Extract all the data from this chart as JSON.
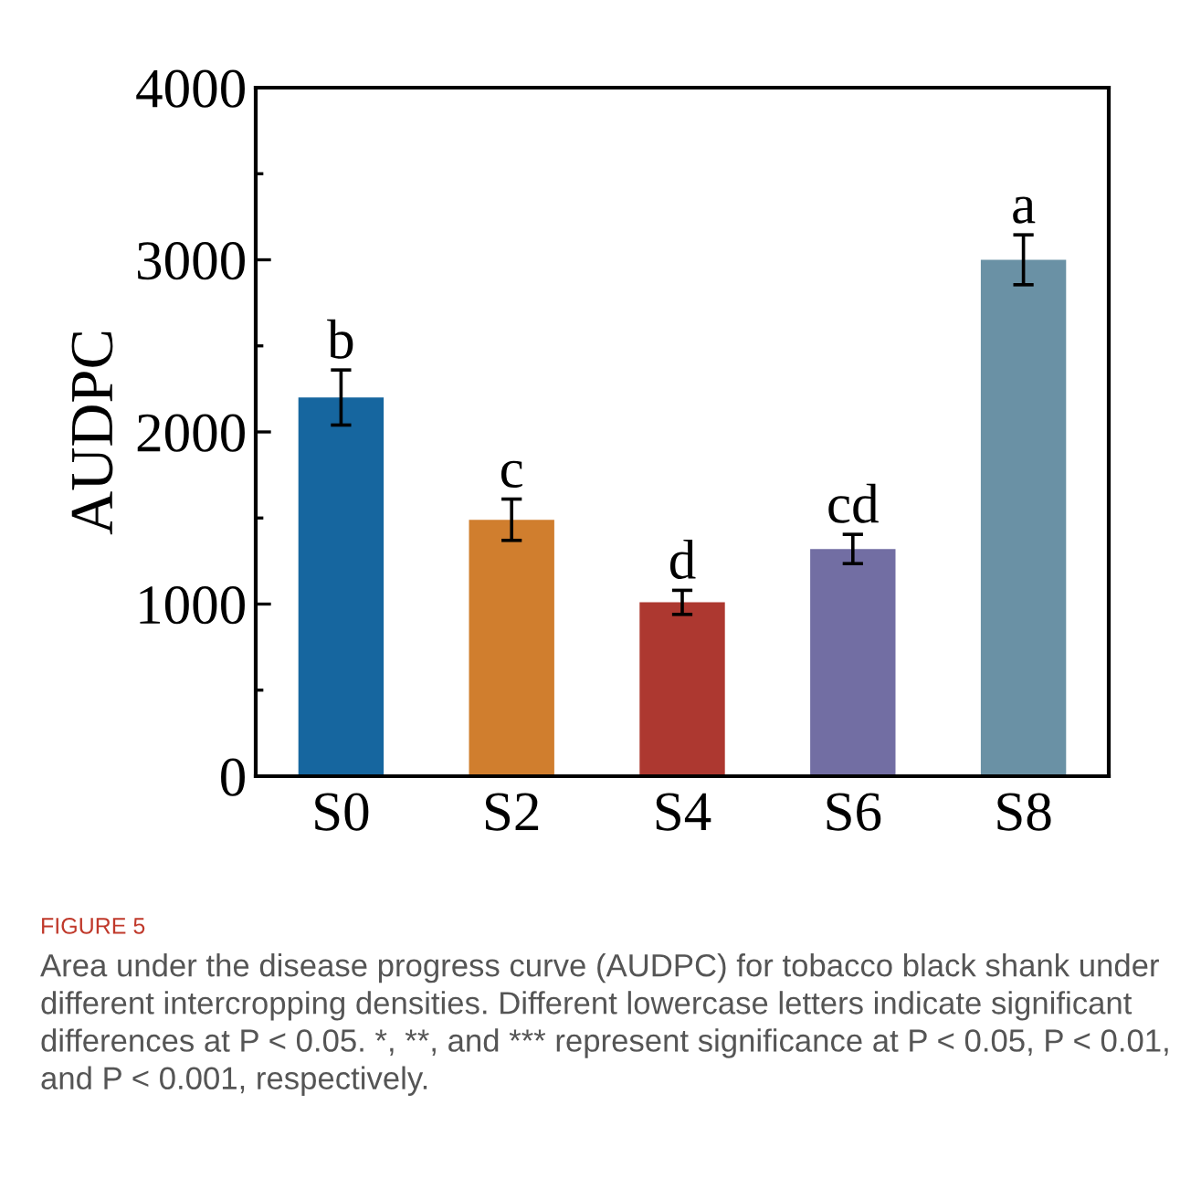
{
  "chart_data": {
    "type": "bar",
    "ylabel": "AUDPC",
    "categories": [
      "S0",
      "S2",
      "S4",
      "S6",
      "S8"
    ],
    "values": [
      2200,
      1490,
      1010,
      1320,
      3000
    ],
    "errors": [
      160,
      120,
      70,
      85,
      145
    ],
    "colors": [
      "#16669f",
      "#d07e2e",
      "#ad3830",
      "#726ea3",
      "#6a91a5"
    ],
    "ylim": [
      0,
      4000
    ],
    "yticks": [
      0,
      {
        "value": 500,
        "label": null
      },
      1000,
      {
        "value": 1500,
        "label": null
      },
      2000,
      {
        "value": 2500,
        "label": null
      },
      3000,
      {
        "value": 3500,
        "label": null
      },
      4000
    ],
    "grid": false,
    "legend": false,
    "annotations": [
      {
        "text": "b",
        "x": "S0",
        "y": 2360
      },
      {
        "text": "c",
        "x": "S2",
        "y": 1610
      },
      {
        "text": "d",
        "x": "S4",
        "y": 1080
      },
      {
        "text": "cd",
        "x": "S6",
        "y": 1405
      },
      {
        "text": "a",
        "x": "S8",
        "y": 3145
      },
      "FIGURE 5",
      "Area under the disease progress curve (AUDPC) for tobacco black shank under different intercropping densities. Different lowercase letters indicate significant differences at P < 0.05. *, **, and *** represent significance at P < 0.05, P < 0.01, and P < 0.001, respectively."
    ]
  }
}
